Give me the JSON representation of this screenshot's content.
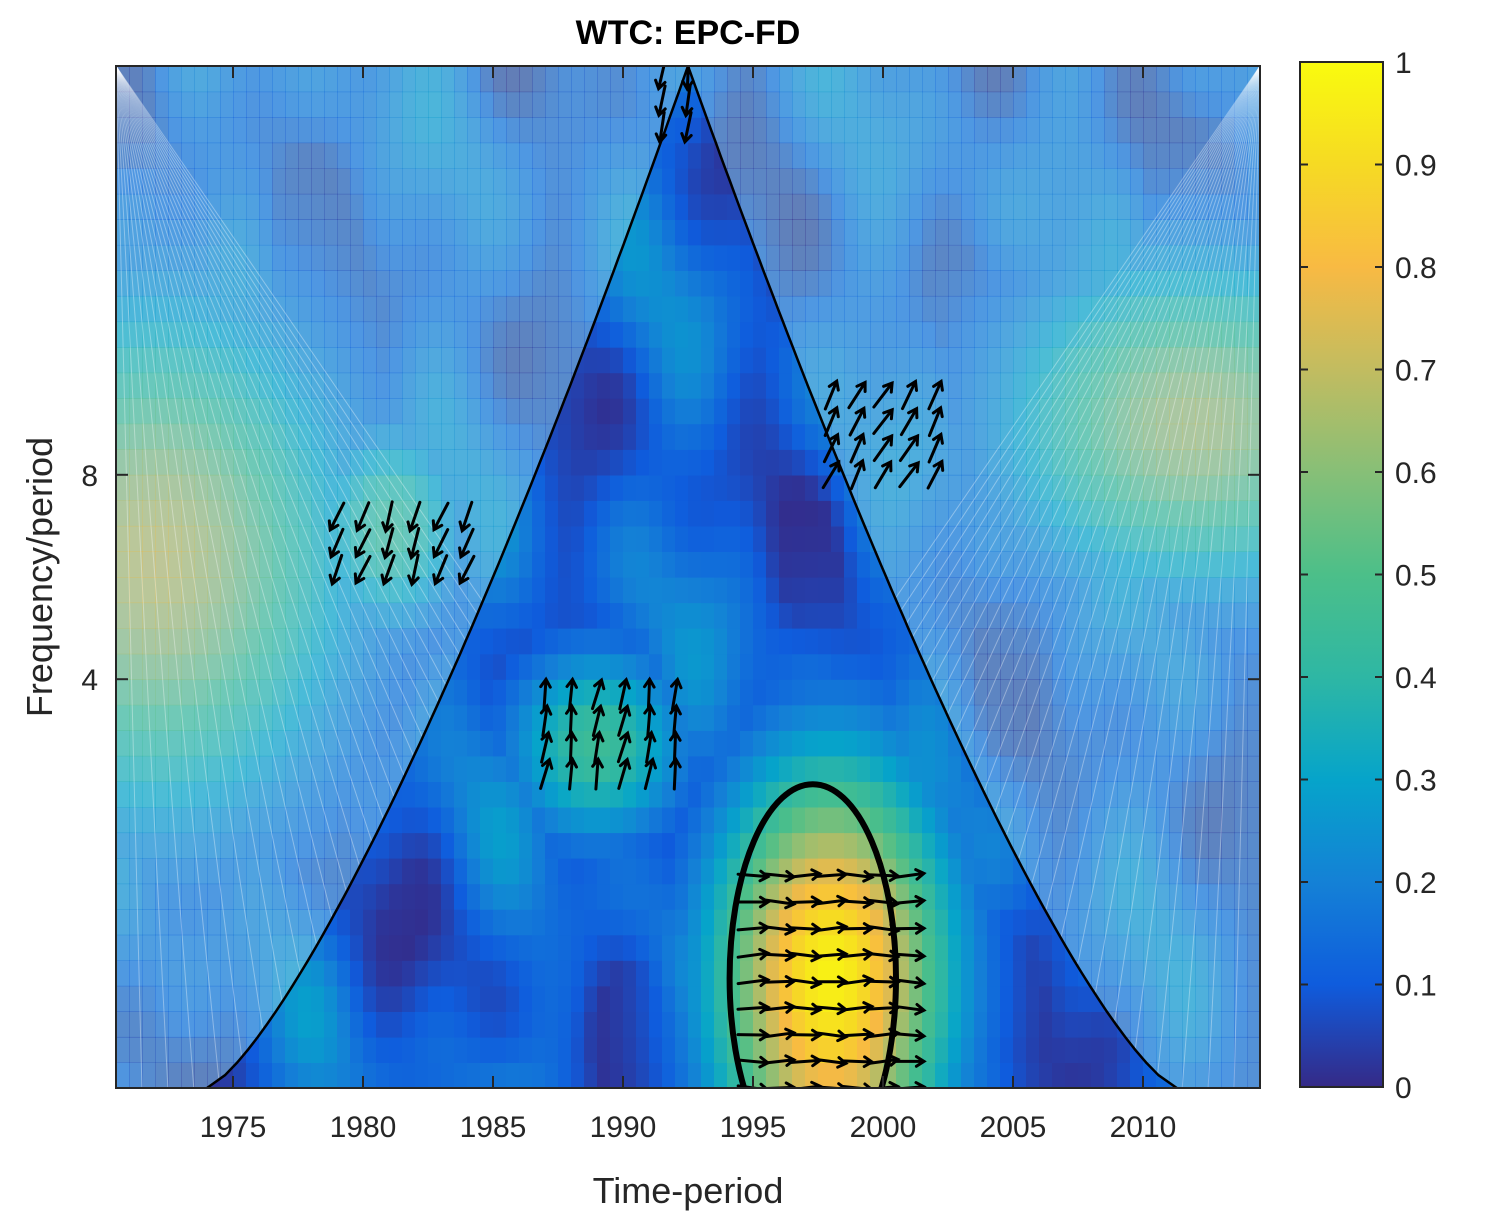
{
  "chart_data": {
    "type": "heatmap",
    "title": "WTC: EPC-FD",
    "xlabel": "Time-period",
    "ylabel": "Frequency/period",
    "xlim": [
      1970.5,
      2014.5
    ],
    "x_ticks": [
      1975,
      1980,
      1985,
      1990,
      1995,
      2000,
      2005,
      2010
    ],
    "y_scale": "log2",
    "ylim": [
      1,
      32
    ],
    "y_ticks": [
      4,
      8
    ],
    "y_tick_labels": [
      "4",
      "8"
    ],
    "colorbar": {
      "range": [
        0,
        1
      ],
      "ticks": [
        0,
        0.1,
        0.2,
        0.3,
        0.4,
        0.5,
        0.6,
        0.7,
        0.8,
        0.9,
        1
      ],
      "tick_labels": [
        "0",
        "0.1",
        "0.2",
        "0.3",
        "0.4",
        "0.5",
        "0.6",
        "0.7",
        "0.8",
        "0.9",
        "1"
      ],
      "colormap": "parula"
    },
    "cone_of_influence": {
      "apex_year": 1992.5,
      "left_base_year": 1974,
      "right_base_year": 2011.3
    },
    "coherence_blobs": [
      {
        "center_year": 1998,
        "center_period": 1.45,
        "year_sigma": 3.2,
        "period_sigma_log2": 0.75,
        "peak": 0.97
      },
      {
        "center_year": 1972,
        "center_period": 6.0,
        "year_sigma": 5.0,
        "period_sigma_log2": 0.85,
        "peak": 0.78
      },
      {
        "center_year": 2012,
        "center_period": 9.5,
        "year_sigma": 5.0,
        "period_sigma_log2": 0.55,
        "peak": 0.72
      },
      {
        "center_year": 1989,
        "center_period": 3.2,
        "year_sigma": 2.5,
        "period_sigma_log2": 0.35,
        "peak": 0.45
      },
      {
        "center_year": 1981,
        "center_period": 6.7,
        "year_sigma": 2.0,
        "period_sigma_log2": 0.35,
        "peak": 0.5
      }
    ],
    "significance_contours": [
      {
        "level": 0.95,
        "center_year": 1997.3,
        "center_period": 1.45,
        "year_radius": 3.2,
        "period_radius_log2": 0.95
      }
    ],
    "phase_arrow_regions": [
      {
        "year_range": [
          1995,
          2001
        ],
        "period_range": [
          1.0,
          2.2
        ],
        "angle_deg": 0
      },
      {
        "year_range": [
          1987,
          1992
        ],
        "period_range": [
          2.9,
          4.0
        ],
        "angle_deg": 80
      },
      {
        "year_range": [
          1979,
          1984
        ],
        "period_range": [
          5.8,
          7.4
        ],
        "angle_deg": 250
      },
      {
        "year_range": [
          1998,
          2002
        ],
        "period_range": [
          8.0,
          10.5
        ],
        "angle_deg": 60
      },
      {
        "year_range": [
          1991.5,
          1993
        ],
        "period_range": [
          26.0,
          32.0
        ],
        "angle_deg": 265
      }
    ]
  }
}
